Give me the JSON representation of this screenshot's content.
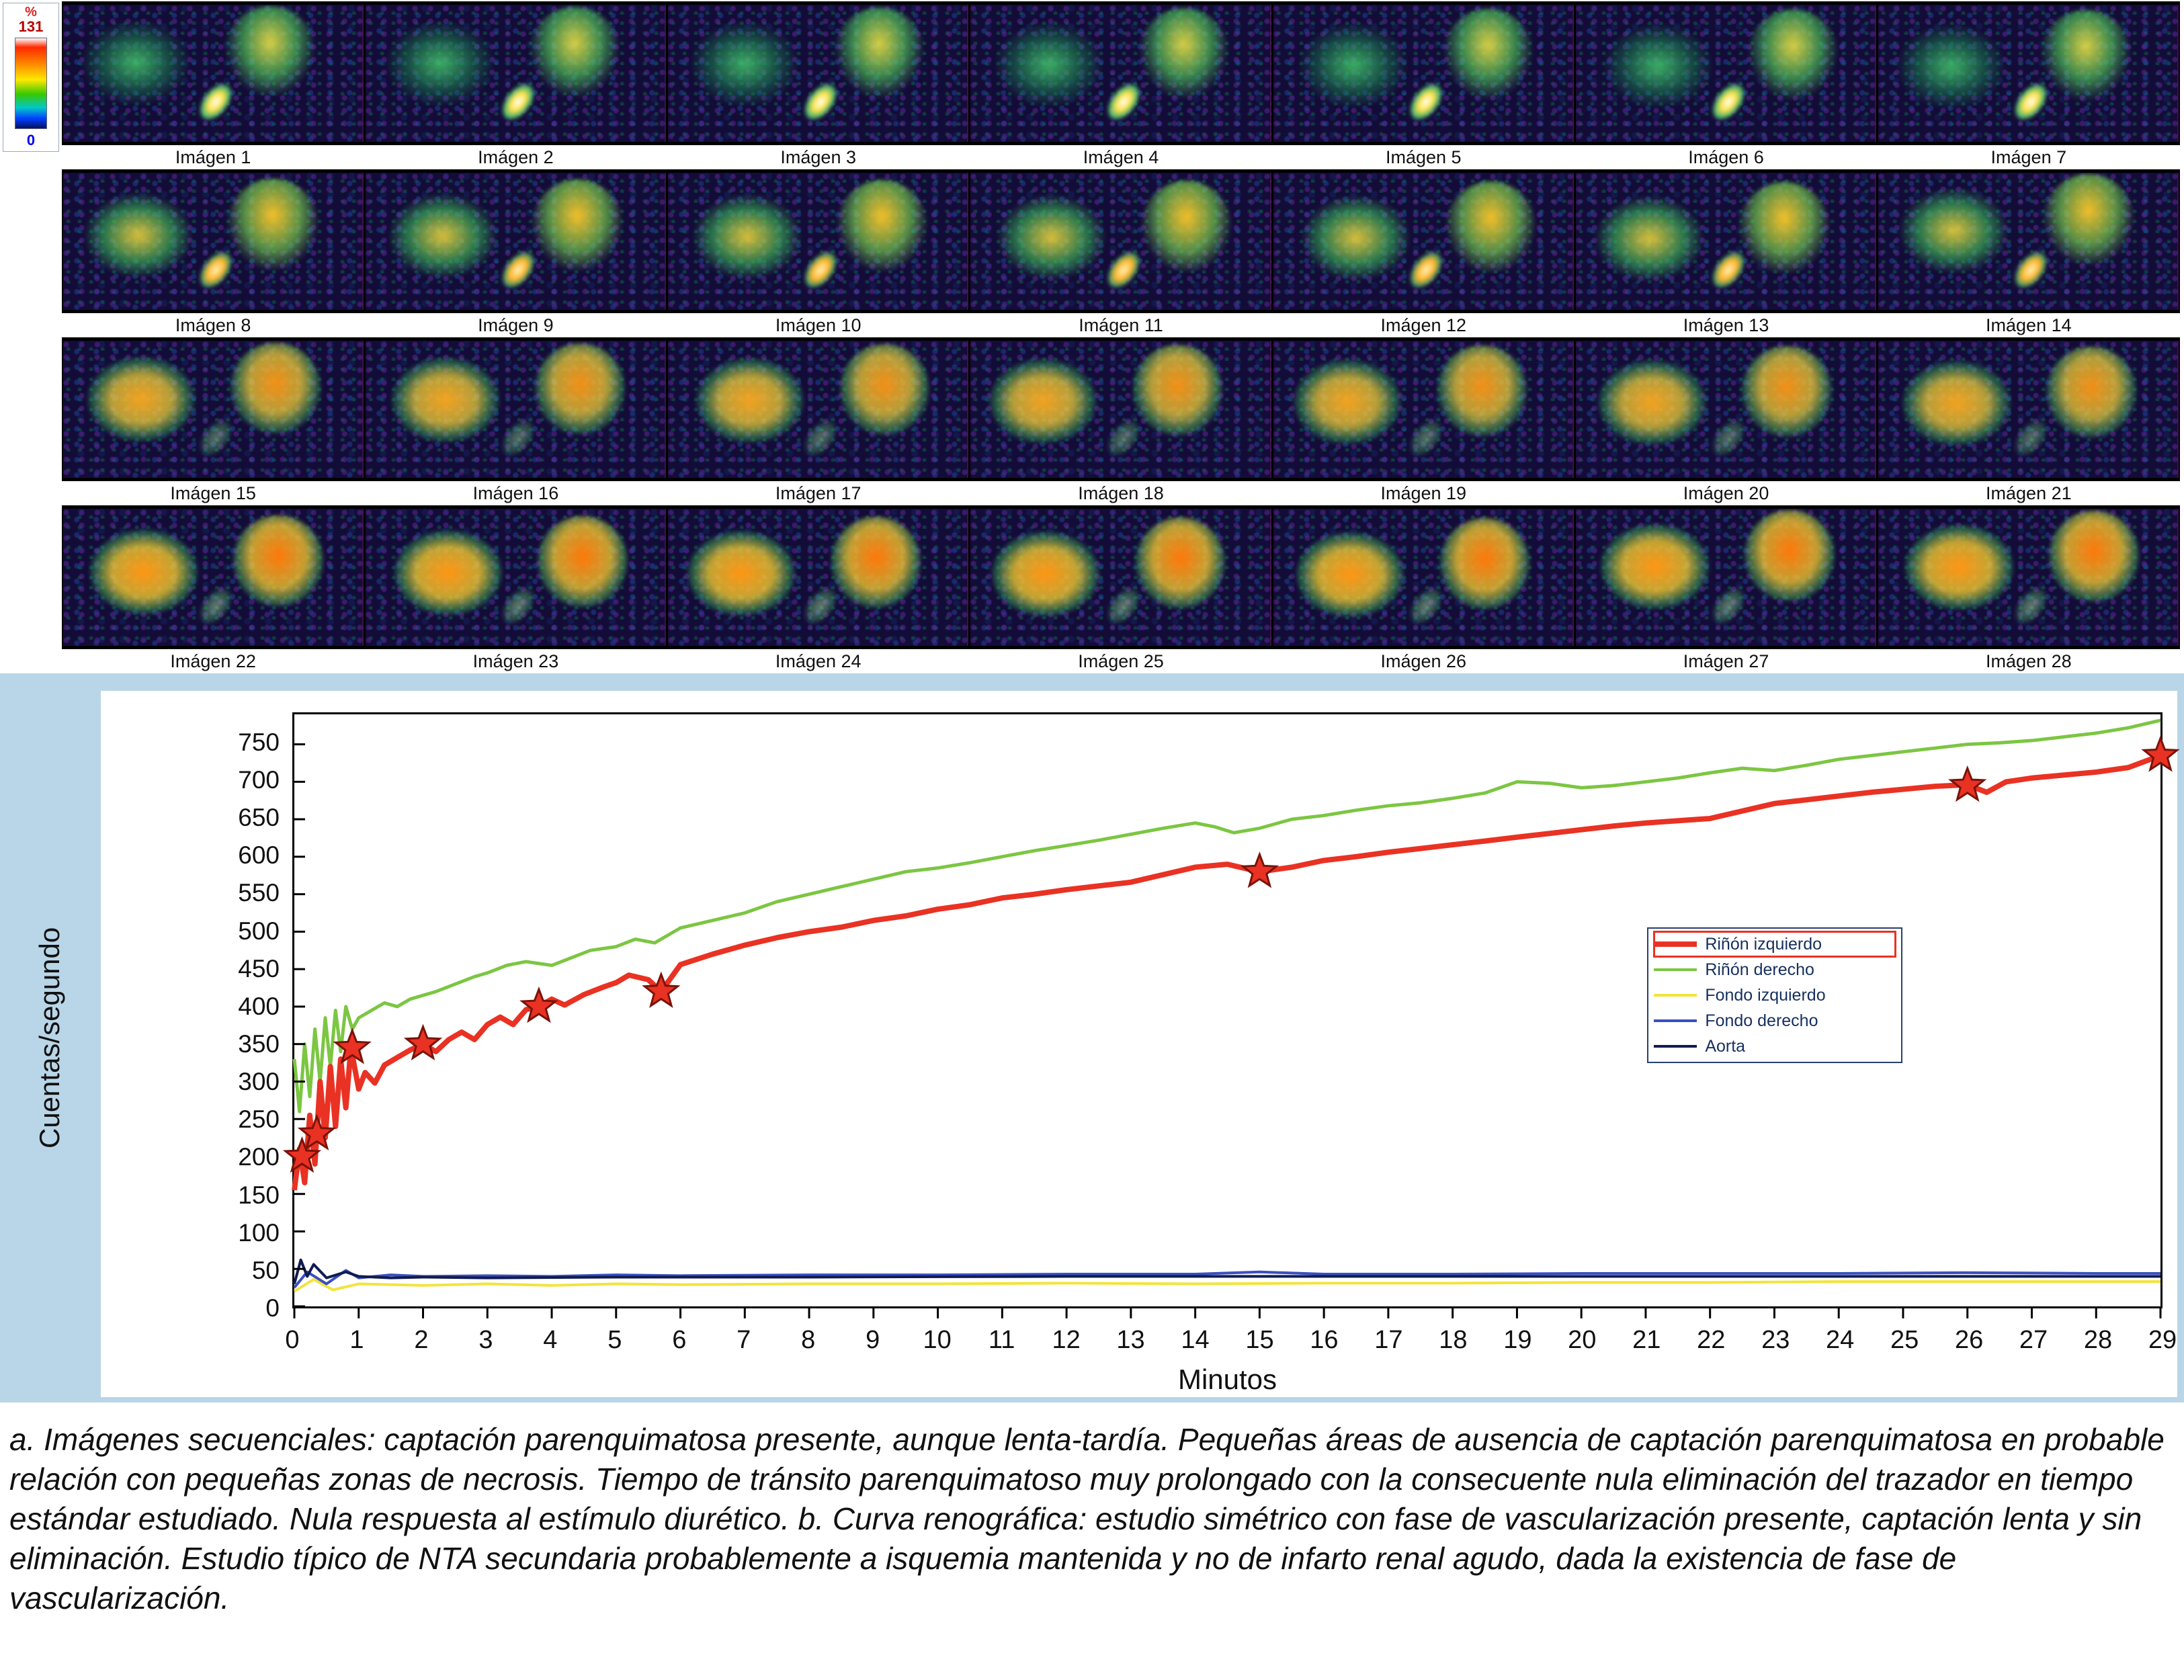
{
  "colorbar": {
    "percent_label": "%",
    "max_label": "131",
    "min_label": "0"
  },
  "image_grid": {
    "labels": [
      "Imágen 1",
      "Imágen 2",
      "Imágen 3",
      "Imágen 4",
      "Imágen 5",
      "Imágen 6",
      "Imágen 7",
      "Imágen 8",
      "Imágen 9",
      "Imágen 10",
      "Imágen 11",
      "Imágen 12",
      "Imágen 13",
      "Imágen 14",
      "Imágen 15",
      "Imágen 16",
      "Imágen 17",
      "Imágen 18",
      "Imágen 19",
      "Imágen 20",
      "Imágen 21",
      "Imágen 22",
      "Imágen 23",
      "Imágen 24",
      "Imágen 25",
      "Imágen 26",
      "Imágen 27",
      "Imágen 28"
    ]
  },
  "chart_data": {
    "type": "line",
    "title": "",
    "ylabel": "Cuentas/segundo",
    "xlabel": "Minutos",
    "xlim": [
      0,
      29
    ],
    "ylim": [
      0,
      790
    ],
    "grid": false,
    "legend_position": "right-middle",
    "y_ticks": [
      0,
      50,
      100,
      150,
      200,
      250,
      300,
      350,
      400,
      450,
      500,
      550,
      600,
      650,
      700,
      750
    ],
    "x_ticks": [
      0,
      1,
      2,
      3,
      4,
      5,
      6,
      7,
      8,
      9,
      10,
      11,
      12,
      13,
      14,
      15,
      16,
      17,
      18,
      19,
      20,
      21,
      22,
      23,
      24,
      25,
      26,
      27,
      28,
      29
    ],
    "series": [
      {
        "name": "Riñón izquierdo",
        "color": "#e93223",
        "width": 8,
        "points": [
          [
            0,
            155
          ],
          [
            0.08,
            210
          ],
          [
            0.16,
            165
          ],
          [
            0.24,
            255
          ],
          [
            0.32,
            190
          ],
          [
            0.4,
            300
          ],
          [
            0.48,
            225
          ],
          [
            0.56,
            320
          ],
          [
            0.64,
            240
          ],
          [
            0.72,
            330
          ],
          [
            0.8,
            265
          ],
          [
            0.88,
            345
          ],
          [
            1,
            290
          ],
          [
            1.1,
            312
          ],
          [
            1.25,
            298
          ],
          [
            1.4,
            322
          ],
          [
            1.6,
            332
          ],
          [
            1.8,
            342
          ],
          [
            2,
            350
          ],
          [
            2.2,
            340
          ],
          [
            2.4,
            356
          ],
          [
            2.6,
            366
          ],
          [
            2.8,
            356
          ],
          [
            3,
            376
          ],
          [
            3.2,
            386
          ],
          [
            3.4,
            376
          ],
          [
            3.6,
            396
          ],
          [
            3.8,
            400
          ],
          [
            4,
            410
          ],
          [
            4.2,
            402
          ],
          [
            4.5,
            416
          ],
          [
            4.8,
            426
          ],
          [
            5,
            432
          ],
          [
            5.2,
            442
          ],
          [
            5.5,
            436
          ],
          [
            5.7,
            420
          ],
          [
            6,
            456
          ],
          [
            6.5,
            470
          ],
          [
            7,
            482
          ],
          [
            7.5,
            492
          ],
          [
            8,
            500
          ],
          [
            8.5,
            506
          ],
          [
            9,
            515
          ],
          [
            9.5,
            521
          ],
          [
            10,
            530
          ],
          [
            10.5,
            536
          ],
          [
            11,
            545
          ],
          [
            11.5,
            550
          ],
          [
            12,
            556
          ],
          [
            12.5,
            561
          ],
          [
            13,
            566
          ],
          [
            13.5,
            576
          ],
          [
            14,
            586
          ],
          [
            14.5,
            590
          ],
          [
            15,
            580
          ],
          [
            15.5,
            586
          ],
          [
            16,
            595
          ],
          [
            16.5,
            600
          ],
          [
            17,
            606
          ],
          [
            17.5,
            611
          ],
          [
            18,
            616
          ],
          [
            18.5,
            621
          ],
          [
            19,
            626
          ],
          [
            19.5,
            631
          ],
          [
            20,
            636
          ],
          [
            20.5,
            641
          ],
          [
            21,
            645
          ],
          [
            21.5,
            648
          ],
          [
            22,
            651
          ],
          [
            22.5,
            661
          ],
          [
            23,
            671
          ],
          [
            23.5,
            676
          ],
          [
            24,
            681
          ],
          [
            24.5,
            686
          ],
          [
            25,
            690
          ],
          [
            25.5,
            694
          ],
          [
            26,
            696
          ],
          [
            26.3,
            686
          ],
          [
            26.6,
            700
          ],
          [
            27,
            705
          ],
          [
            27.5,
            709
          ],
          [
            28,
            713
          ],
          [
            28.5,
            719
          ],
          [
            29,
            735
          ]
        ]
      },
      {
        "name": "Riñón derecho",
        "color": "#7cc642",
        "width": 5,
        "points": [
          [
            0,
            330
          ],
          [
            0.08,
            260
          ],
          [
            0.16,
            350
          ],
          [
            0.24,
            280
          ],
          [
            0.32,
            370
          ],
          [
            0.4,
            300
          ],
          [
            0.48,
            385
          ],
          [
            0.56,
            320
          ],
          [
            0.64,
            395
          ],
          [
            0.72,
            340
          ],
          [
            0.8,
            400
          ],
          [
            0.9,
            370
          ],
          [
            1,
            385
          ],
          [
            1.2,
            395
          ],
          [
            1.4,
            405
          ],
          [
            1.6,
            400
          ],
          [
            1.8,
            410
          ],
          [
            2,
            415
          ],
          [
            2.2,
            420
          ],
          [
            2.5,
            430
          ],
          [
            2.8,
            440
          ],
          [
            3,
            445
          ],
          [
            3.3,
            455
          ],
          [
            3.6,
            460
          ],
          [
            4,
            455
          ],
          [
            4.3,
            465
          ],
          [
            4.6,
            475
          ],
          [
            5,
            480
          ],
          [
            5.3,
            490
          ],
          [
            5.6,
            485
          ],
          [
            6,
            505
          ],
          [
            6.5,
            515
          ],
          [
            7,
            525
          ],
          [
            7.5,
            540
          ],
          [
            8,
            550
          ],
          [
            8.5,
            560
          ],
          [
            9,
            570
          ],
          [
            9.5,
            580
          ],
          [
            10,
            585
          ],
          [
            10.5,
            592
          ],
          [
            11,
            600
          ],
          [
            11.5,
            608
          ],
          [
            12,
            615
          ],
          [
            12.5,
            622
          ],
          [
            13,
            630
          ],
          [
            13.5,
            638
          ],
          [
            14,
            645
          ],
          [
            14.3,
            640
          ],
          [
            14.6,
            632
          ],
          [
            15,
            638
          ],
          [
            15.5,
            650
          ],
          [
            16,
            655
          ],
          [
            16.5,
            662
          ],
          [
            17,
            668
          ],
          [
            17.5,
            672
          ],
          [
            18,
            678
          ],
          [
            18.5,
            685
          ],
          [
            19,
            700
          ],
          [
            19.5,
            698
          ],
          [
            20,
            692
          ],
          [
            20.5,
            695
          ],
          [
            21,
            700
          ],
          [
            21.5,
            705
          ],
          [
            22,
            712
          ],
          [
            22.5,
            718
          ],
          [
            23,
            715
          ],
          [
            23.5,
            722
          ],
          [
            24,
            730
          ],
          [
            24.5,
            735
          ],
          [
            25,
            740
          ],
          [
            25.5,
            745
          ],
          [
            26,
            750
          ],
          [
            26.5,
            752
          ],
          [
            27,
            755
          ],
          [
            27.5,
            760
          ],
          [
            28,
            765
          ],
          [
            28.5,
            772
          ],
          [
            29,
            782
          ]
        ]
      },
      {
        "name": "Fondo izquierdo",
        "color": "#f2e43a",
        "width": 4,
        "points": [
          [
            0,
            20
          ],
          [
            0.3,
            36
          ],
          [
            0.6,
            22
          ],
          [
            1,
            30
          ],
          [
            2,
            28
          ],
          [
            3,
            30
          ],
          [
            4,
            28
          ],
          [
            5,
            30
          ],
          [
            6,
            29
          ],
          [
            8,
            30
          ],
          [
            10,
            30
          ],
          [
            12,
            31
          ],
          [
            14,
            30
          ],
          [
            16,
            31
          ],
          [
            18,
            31
          ],
          [
            20,
            32
          ],
          [
            22,
            32
          ],
          [
            24,
            33
          ],
          [
            26,
            33
          ],
          [
            28,
            33
          ],
          [
            29,
            33
          ]
        ]
      },
      {
        "name": "Fondo derecho",
        "color": "#3a4fc0",
        "width": 4,
        "points": [
          [
            0,
            25
          ],
          [
            0.2,
            46
          ],
          [
            0.5,
            30
          ],
          [
            0.8,
            48
          ],
          [
            1,
            38
          ],
          [
            1.5,
            42
          ],
          [
            2,
            40
          ],
          [
            3,
            41
          ],
          [
            4,
            40
          ],
          [
            5,
            42
          ],
          [
            6,
            41
          ],
          [
            8,
            42
          ],
          [
            10,
            42
          ],
          [
            12,
            43
          ],
          [
            14,
            43
          ],
          [
            15,
            46
          ],
          [
            16,
            43
          ],
          [
            18,
            43
          ],
          [
            20,
            44
          ],
          [
            22,
            44
          ],
          [
            24,
            44
          ],
          [
            26,
            45
          ],
          [
            28,
            44
          ],
          [
            29,
            44
          ]
        ]
      },
      {
        "name": "Aorta",
        "color": "#101c50",
        "width": 4,
        "points": [
          [
            0,
            30
          ],
          [
            0.1,
            62
          ],
          [
            0.2,
            40
          ],
          [
            0.3,
            56
          ],
          [
            0.5,
            38
          ],
          [
            0.8,
            46
          ],
          [
            1,
            40
          ],
          [
            1.5,
            38
          ],
          [
            2,
            39
          ],
          [
            3,
            38
          ],
          [
            5,
            39
          ],
          [
            8,
            39
          ],
          [
            12,
            40
          ],
          [
            16,
            40
          ],
          [
            20,
            40
          ],
          [
            24,
            40
          ],
          [
            29,
            40
          ]
        ]
      }
    ],
    "star_markers": {
      "color": "#e93223",
      "edge": "#7a1208",
      "points": [
        [
          0.12,
          200
        ],
        [
          0.35,
          230
        ],
        [
          0.9,
          345
        ],
        [
          2,
          350
        ],
        [
          3.8,
          400
        ],
        [
          5.7,
          420
        ],
        [
          15,
          580
        ],
        [
          26,
          695
        ],
        [
          29,
          735
        ]
      ]
    }
  },
  "caption": {
    "text": "a. Imágenes secuenciales: captación parenquimatosa presente, aunque lenta-tardía. Pequeñas áreas de ausencia de captación parenquimatosa en probable relación con pequeñas zonas de necrosis. Tiempo de tránsito parenquimatoso muy prolongado con la consecuente nula eliminación del trazador en tiempo estándar estudiado. Nula respuesta al estímulo diurético. b. Curva renográfica: estudio simétrico con fase de vascularización presente, captación lenta y sin eliminación. Estudio típico de NTA secundaria probablemente a isquemia mantenida y no de infarto renal agudo, dada la existencia de fase de vascularización."
  }
}
